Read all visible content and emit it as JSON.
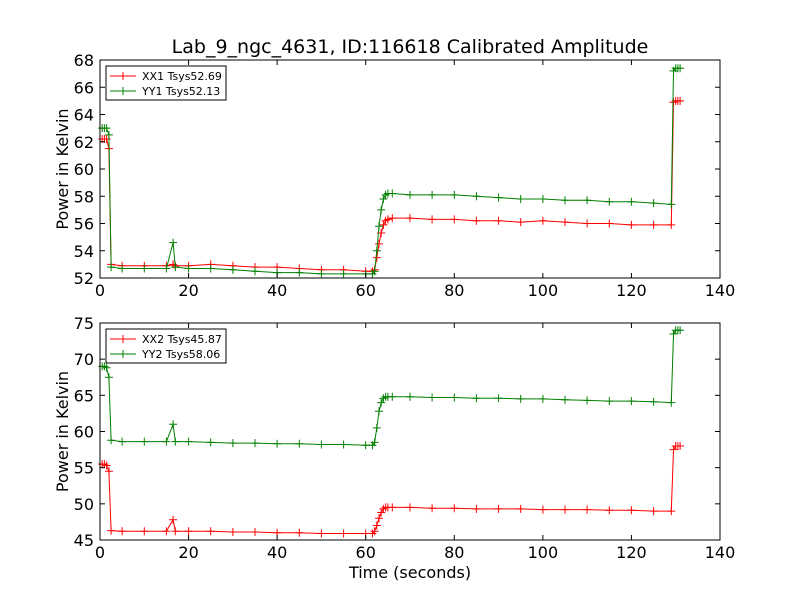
{
  "chart_data": [
    {
      "type": "line",
      "title": "Lab_9_ngc_4631, ID:116618 Calibrated Amplitude",
      "xlabel": "",
      "ylabel": "Power in Kelvin",
      "xlim": [
        0,
        140
      ],
      "ylim": [
        52,
        68
      ],
      "xticks": [
        0,
        20,
        40,
        60,
        80,
        100,
        120,
        140
      ],
      "yticks": [
        52,
        54,
        56,
        58,
        60,
        62,
        64,
        66,
        68
      ],
      "grid": false,
      "legend_position": "top-left",
      "series": [
        {
          "name": "XX1 Tsys52.69",
          "color": "#ff0000",
          "x": [
            0.5,
            1.0,
            1.5,
            2.0,
            2.5,
            5,
            10,
            15,
            16.5,
            17,
            20,
            25,
            30,
            35,
            40,
            45,
            50,
            55,
            60,
            61.5,
            62,
            62.5,
            63,
            63.5,
            64,
            64.5,
            65,
            66,
            70,
            75,
            80,
            85,
            90,
            95,
            100,
            105,
            110,
            115,
            120,
            125,
            129,
            129.5,
            130,
            130.5,
            131
          ],
          "y": [
            62.2,
            62.2,
            62.2,
            61.5,
            53.0,
            52.9,
            52.9,
            52.9,
            53.0,
            52.9,
            52.9,
            53.0,
            52.9,
            52.8,
            52.8,
            52.7,
            52.6,
            52.6,
            52.5,
            52.5,
            52.6,
            53.5,
            54.5,
            55.3,
            55.9,
            56.2,
            56.3,
            56.4,
            56.4,
            56.3,
            56.3,
            56.2,
            56.2,
            56.1,
            56.2,
            56.1,
            56.0,
            56.0,
            55.9,
            55.9,
            55.9,
            64.9,
            65.0,
            65.0,
            65.0
          ]
        },
        {
          "name": "YY1 Tsys52.13",
          "color": "#008000",
          "x": [
            0.5,
            1.0,
            1.5,
            2.0,
            2.5,
            5,
            10,
            15,
            16.5,
            17,
            20,
            25,
            30,
            35,
            40,
            45,
            50,
            55,
            60,
            61.5,
            62,
            62.5,
            63,
            63.5,
            64,
            64.5,
            65,
            66,
            70,
            75,
            80,
            85,
            90,
            95,
            100,
            105,
            110,
            115,
            120,
            125,
            129,
            129.5,
            130,
            130.5,
            131
          ],
          "y": [
            63.0,
            63.0,
            63.0,
            62.5,
            52.8,
            52.7,
            52.7,
            52.7,
            54.6,
            52.8,
            52.7,
            52.7,
            52.6,
            52.5,
            52.4,
            52.4,
            52.3,
            52.3,
            52.3,
            52.3,
            52.5,
            54.0,
            55.8,
            57.0,
            57.8,
            58.1,
            58.2,
            58.2,
            58.1,
            58.1,
            58.1,
            58.0,
            57.9,
            57.8,
            57.8,
            57.7,
            57.7,
            57.6,
            57.6,
            57.5,
            57.4,
            67.2,
            67.4,
            67.4,
            67.4
          ]
        }
      ]
    },
    {
      "type": "line",
      "title": "",
      "xlabel": "Time (seconds)",
      "ylabel": "Power in Kelvin",
      "xlim": [
        0,
        140
      ],
      "ylim": [
        45,
        75
      ],
      "xticks": [
        0,
        20,
        40,
        60,
        80,
        100,
        120,
        140
      ],
      "yticks": [
        45,
        50,
        55,
        60,
        65,
        70,
        75
      ],
      "grid": false,
      "legend_position": "top-left",
      "series": [
        {
          "name": "XX2 Tsys45.87",
          "color": "#ff0000",
          "x": [
            0.5,
            1.0,
            1.5,
            2.0,
            2.5,
            5,
            10,
            15,
            16.5,
            17,
            20,
            25,
            30,
            35,
            40,
            45,
            50,
            55,
            60,
            61.5,
            62,
            62.5,
            63,
            63.5,
            64,
            64.5,
            65,
            66,
            70,
            75,
            80,
            85,
            90,
            95,
            100,
            105,
            110,
            115,
            120,
            125,
            129,
            129.5,
            130,
            130.5,
            131
          ],
          "y": [
            55.5,
            55.5,
            55.3,
            54.5,
            46.3,
            46.2,
            46.2,
            46.2,
            47.8,
            46.2,
            46.2,
            46.2,
            46.1,
            46.1,
            46.0,
            46.0,
            45.9,
            45.9,
            45.9,
            45.9,
            46.2,
            47.0,
            48.0,
            48.8,
            49.3,
            49.5,
            49.5,
            49.5,
            49.5,
            49.4,
            49.4,
            49.3,
            49.3,
            49.3,
            49.2,
            49.2,
            49.2,
            49.1,
            49.1,
            49.0,
            49.0,
            57.5,
            58.0,
            58.0,
            58.0
          ]
        },
        {
          "name": "YY2 Tsys58.06",
          "color": "#008000",
          "x": [
            0.5,
            1.0,
            1.5,
            2.0,
            2.5,
            5,
            10,
            15,
            16.5,
            17,
            20,
            25,
            30,
            35,
            40,
            45,
            50,
            55,
            60,
            61.5,
            62,
            62.5,
            63,
            63.5,
            64,
            64.5,
            65,
            66,
            70,
            75,
            80,
            85,
            90,
            95,
            100,
            105,
            110,
            115,
            120,
            125,
            129,
            129.5,
            130,
            130.5,
            131
          ],
          "y": [
            69.0,
            69.0,
            68.8,
            67.5,
            58.8,
            58.6,
            58.6,
            58.6,
            61.0,
            58.6,
            58.6,
            58.5,
            58.4,
            58.4,
            58.3,
            58.3,
            58.2,
            58.2,
            58.1,
            58.1,
            58.5,
            60.5,
            62.8,
            64.0,
            64.6,
            64.8,
            64.8,
            64.8,
            64.8,
            64.7,
            64.7,
            64.6,
            64.6,
            64.5,
            64.5,
            64.4,
            64.3,
            64.2,
            64.2,
            64.1,
            64.0,
            73.5,
            74.0,
            74.0,
            74.0
          ]
        }
      ]
    }
  ]
}
